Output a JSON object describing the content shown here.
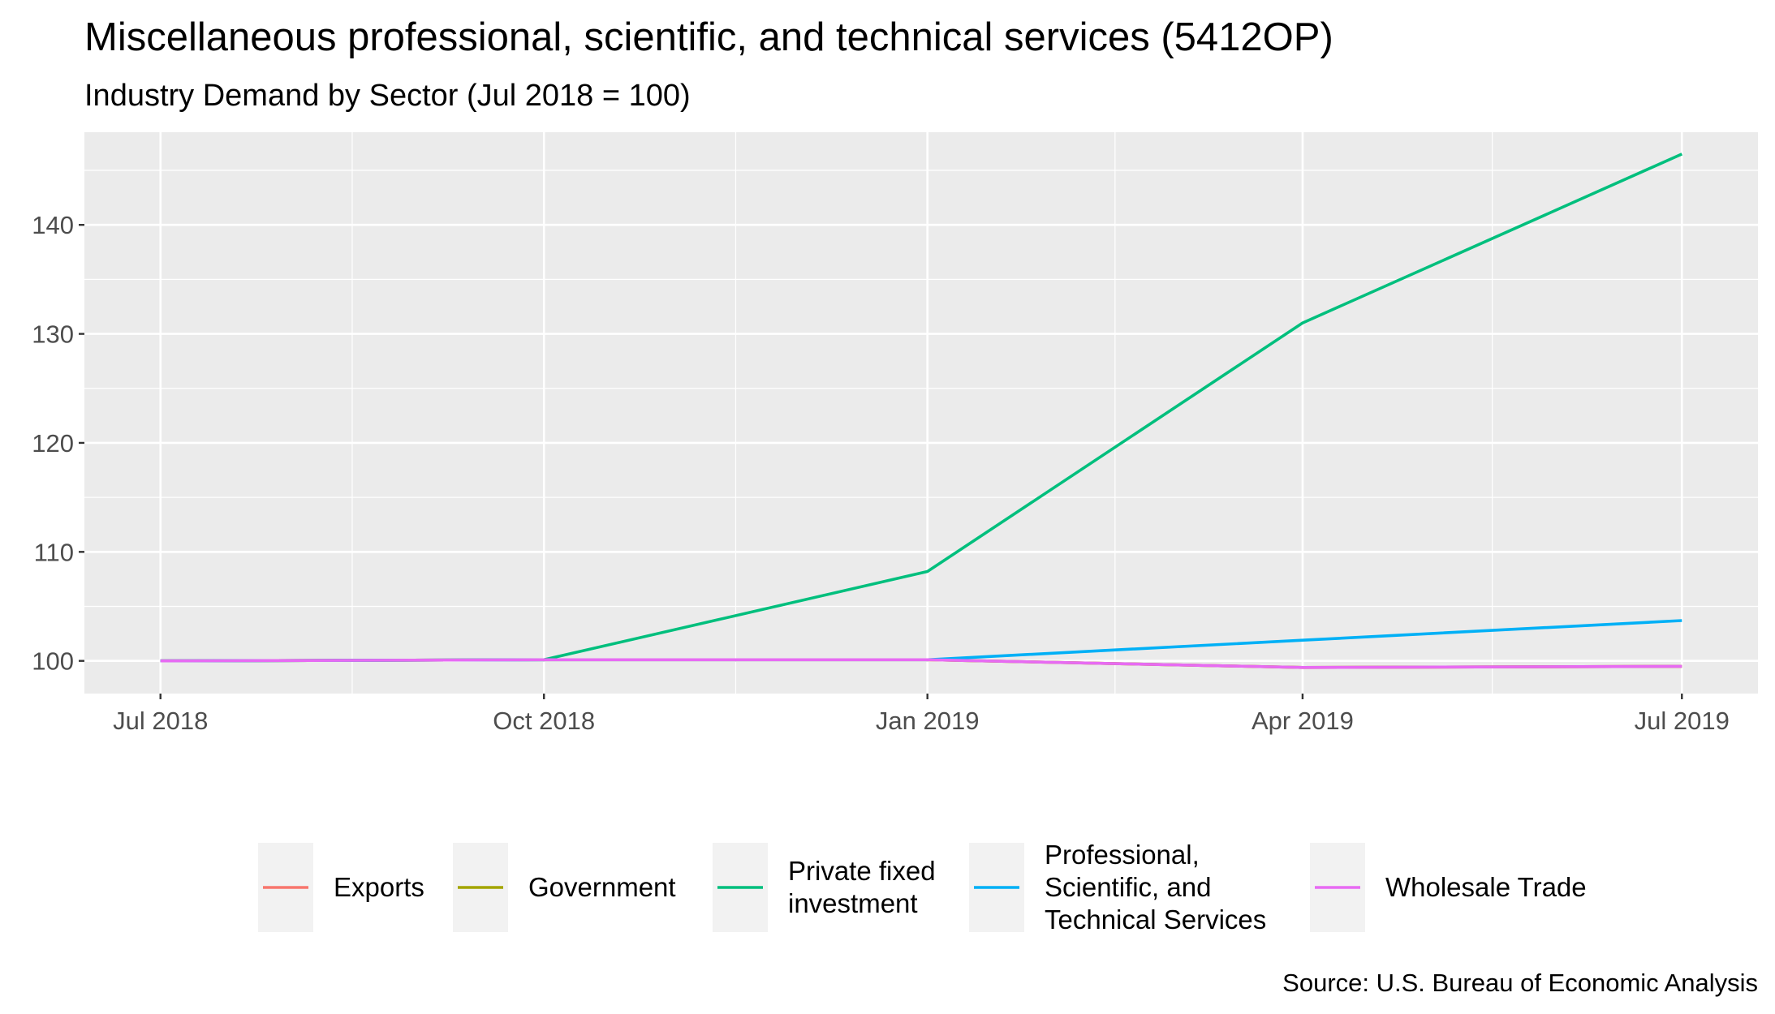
{
  "chart_data": {
    "type": "line",
    "title": "Miscellaneous professional, scientific, and technical services (5412OP)",
    "subtitle": "Industry Demand by Sector (Jul 2018 = 100)",
    "caption": "Source: U.S. Bureau of Economic Analysis",
    "xlabel": "",
    "ylabel": "",
    "x": [
      "2018-07-01",
      "2018-10-01",
      "2019-01-01",
      "2019-04-01",
      "2019-07-01"
    ],
    "x_tick_labels": [
      "Jul 2018",
      "Oct 2018",
      "Jan 2019",
      "Apr 2019",
      "Jul 2019"
    ],
    "y_ticks": [
      100,
      110,
      120,
      130,
      140
    ],
    "ylim": [
      97,
      148.5
    ],
    "grid": true,
    "legend_position": "bottom",
    "series": [
      {
        "name": "Exports",
        "color": "#F8766D",
        "values": [
          100,
          100.1,
          100.1,
          99.4,
          99.5
        ]
      },
      {
        "name": "Government",
        "color": "#A3A500",
        "values": [
          100,
          100.1,
          100.1,
          99.4,
          99.5
        ]
      },
      {
        "name": "Private fixed investment",
        "color": "#00BF7D",
        "values": [
          100,
          100.1,
          108.2,
          131.0,
          146.5
        ]
      },
      {
        "name": "Professional, Scientific, and Technical Services",
        "color": "#00B0F6",
        "values": [
          100,
          100.1,
          100.1,
          101.9,
          103.7
        ]
      },
      {
        "name": "Wholesale Trade",
        "color": "#E76BF3",
        "values": [
          100,
          100.1,
          100.1,
          99.4,
          99.5
        ]
      }
    ]
  }
}
